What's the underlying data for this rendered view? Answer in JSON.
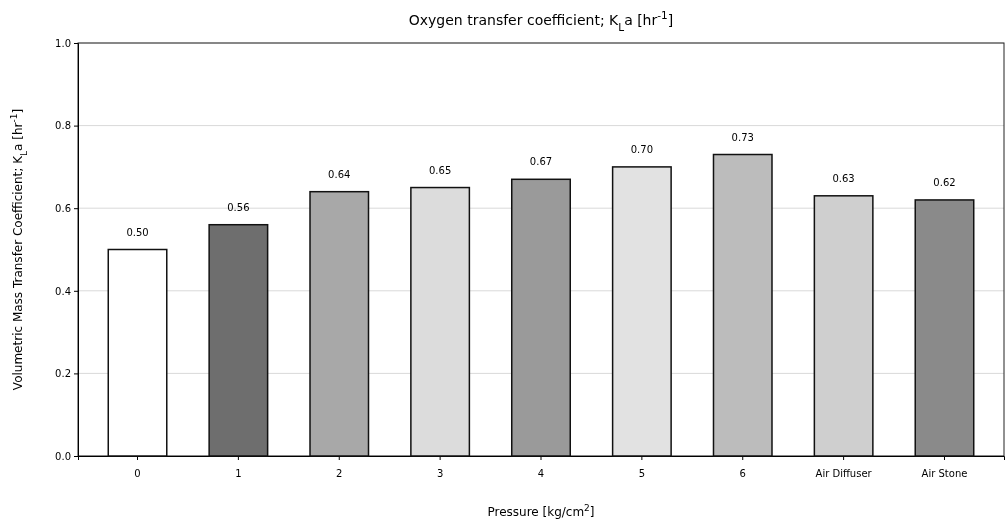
{
  "chart_data": {
    "type": "bar",
    "title": "Oxygen transfer coefficient; K$_{L}$a [hr$^{-1}$]",
    "xlabel": "Pressure [kg/cm$^{2}$]",
    "ylabel": "Volumetric Mass Transfer Coefficient; K$_{L}$a [hr$^{-1}$]",
    "categories": [
      "0",
      "1",
      "2",
      "3",
      "4",
      "5",
      "6",
      "Air Diffuser",
      "Air Stone"
    ],
    "values": [
      0.5,
      0.56,
      0.64,
      0.65,
      0.67,
      0.7,
      0.73,
      0.63,
      0.62
    ],
    "colors": [
      "#ffffff",
      "#6e6e6e",
      "#a8a8a8",
      "#dcdcdc",
      "#9a9a9a",
      "#e2e2e2",
      "#bcbcbc",
      "#cfcfcf",
      "#8a8a8a"
    ],
    "ylim": [
      0,
      1
    ],
    "yticks": [
      {
        "value": 0,
        "label": "0.0"
      },
      {
        "value": 0.2,
        "label": "0.2"
      },
      {
        "value": 0.4,
        "label": "0.4"
      },
      {
        "value": 0.6,
        "label": "0.6"
      },
      {
        "value": 0.8,
        "label": "0.8"
      },
      {
        "value": 1,
        "label": "1.0"
      }
    ],
    "value_labels": [
      "0.50",
      "0.56",
      "0.64",
      "0.65",
      "0.67",
      "0.70",
      "0.73",
      "0.63",
      "0.62"
    ],
    "grid": "y"
  }
}
